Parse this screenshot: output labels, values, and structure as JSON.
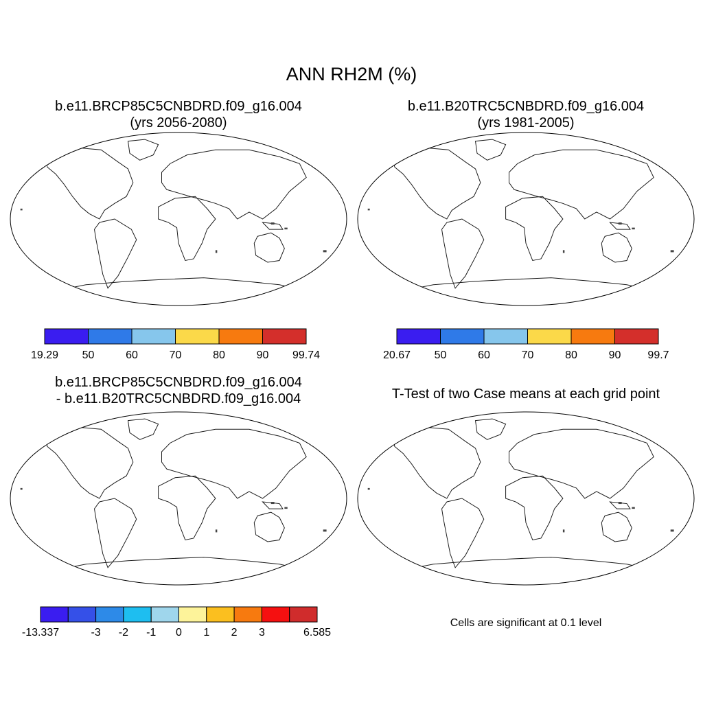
{
  "figure": {
    "title": "ANN RH2M (%)",
    "panels": [
      {
        "title_line1": "b.e11.BRCP85C5CNBDRD.f09_g16.004",
        "title_line2": "(yrs 2056-2080)",
        "colorbar_labels": [
          "19.29",
          "50",
          "60",
          "70",
          "80",
          "90",
          "99.74"
        ],
        "colorbar_colors": [
          "#3a1df0",
          "#2f7ae8",
          "#86c6ec",
          "#fbd949",
          "#f77a0f",
          "#d42f2b"
        ]
      },
      {
        "title_line1": "b.e11.B20TRC5CNBDRD.f09_g16.004",
        "title_line2": "(yrs 1981-2005)",
        "colorbar_labels": [
          "20.67",
          "50",
          "60",
          "70",
          "80",
          "90",
          "99.7"
        ],
        "colorbar_colors": [
          "#3a1df0",
          "#2f7ae8",
          "#86c6ec",
          "#fbd949",
          "#f77a0f",
          "#d42f2b"
        ]
      },
      {
        "title_line1": "b.e11.BRCP85C5CNBDRD.f09_g16.004",
        "title_line2": "- b.e11.B20TRC5CNBDRD.f09_g16.004",
        "colorbar_labels": [
          "-13.337",
          "",
          "-3",
          "-2",
          "-1",
          "0",
          "1",
          "2",
          "3",
          "",
          "6.585"
        ],
        "colorbar_colors": [
          "#3a1df0",
          "#3550e8",
          "#2d8ae8",
          "#1ebef0",
          "#9fd6ec",
          "#fdf39a",
          "#fbbf1f",
          "#f77a0f",
          "#f51010",
          "#d02c2c"
        ]
      },
      {
        "title_line1": "T-Test of two Case means at each grid point",
        "note": "Cells are significant at 0.1 level",
        "significant_color": "#f50000"
      }
    ]
  }
}
